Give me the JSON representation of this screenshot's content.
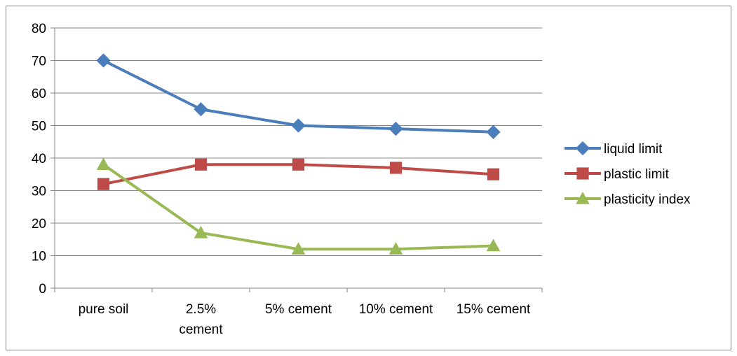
{
  "chart_data": {
    "type": "line",
    "title": "",
    "xlabel": "",
    "ylabel": "",
    "categories": [
      [
        "pure soil"
      ],
      [
        "2.5%",
        "cement"
      ],
      [
        "5% cement"
      ],
      [
        "10% cement"
      ],
      [
        "15% cement"
      ]
    ],
    "ylim": [
      0,
      80
    ],
    "yticks": [
      0,
      10,
      20,
      30,
      40,
      50,
      60,
      70,
      80
    ],
    "grid": true,
    "legend_position": "right",
    "series": [
      {
        "name": "liquid limit",
        "values": [
          70,
          55,
          50,
          49,
          48
        ],
        "color": "#4a7ebb",
        "marker": "diamond"
      },
      {
        "name": "plastic limit",
        "values": [
          32,
          38,
          38,
          37,
          35
        ],
        "color": "#be4b48",
        "marker": "square"
      },
      {
        "name": "plasticity index",
        "values": [
          38,
          17,
          12,
          12,
          13
        ],
        "color": "#98b954",
        "marker": "triangle"
      }
    ]
  }
}
